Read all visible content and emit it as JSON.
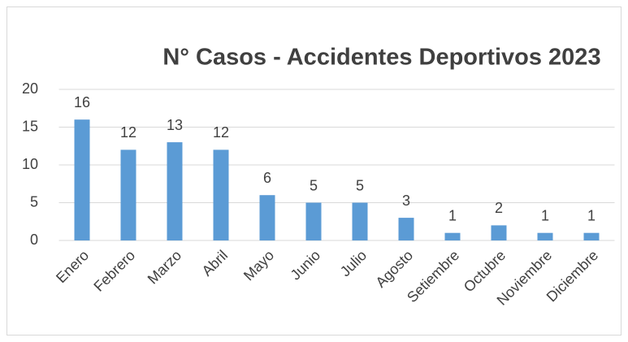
{
  "chart_data": {
    "type": "bar",
    "title": "N° Casos - Accidentes Deportivos 2023",
    "categories": [
      "Enero",
      "Febrero",
      "Marzo",
      "Abril",
      "Mayo",
      "Junio",
      "Julio",
      "Agosto",
      "Setiembre",
      "Octubre",
      "Noviembre",
      "Diciembre"
    ],
    "values": [
      16,
      12,
      13,
      12,
      6,
      5,
      5,
      3,
      1,
      2,
      1,
      1
    ],
    "color": "#5b9bd5",
    "ylim": [
      0,
      20
    ],
    "yticks": [
      0,
      5,
      10,
      15,
      20
    ],
    "grid": true
  }
}
